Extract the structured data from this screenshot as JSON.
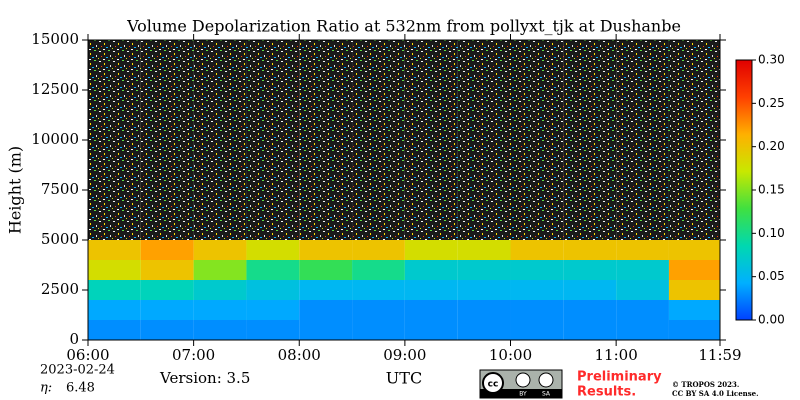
{
  "chart_data": {
    "type": "heatmap",
    "title": "Volume Depolarization Ratio at 532nm from pollyxt_tjk at Dushanbe",
    "ylabel": "Height (m)",
    "xlabel": "UTC",
    "xlim": [
      6,
      11.9833
    ],
    "xticks": [
      {
        "value": 6,
        "label": "06:00"
      },
      {
        "value": 7,
        "label": "07:00"
      },
      {
        "value": 8,
        "label": "08:00"
      },
      {
        "value": 9,
        "label": "09:00"
      },
      {
        "value": 10,
        "label": "10:00"
      },
      {
        "value": 11,
        "label": "11:00"
      },
      {
        "value": 11.9833,
        "label": "11:59"
      }
    ],
    "ylim": [
      0,
      15000
    ],
    "yticks": [
      0,
      2500,
      5000,
      7500,
      10000,
      12500,
      15000
    ],
    "x": [
      6.25,
      6.75,
      7.25,
      7.75,
      8.25,
      8.75,
      9.25,
      9.75,
      10.25,
      10.75,
      11.25,
      11.75
    ],
    "y": [
      500,
      1500,
      2500,
      3500,
      4500,
      5500,
      6500,
      7500,
      8500,
      9500,
      10500,
      11500,
      12500,
      13500,
      14500
    ],
    "z": [
      [
        0.03,
        0.03,
        0.03,
        0.03,
        0.03,
        0.03,
        0.03,
        0.03,
        0.03,
        0.03,
        0.03,
        0.03
      ],
      [
        0.04,
        0.04,
        0.04,
        0.04,
        0.03,
        0.03,
        0.03,
        0.03,
        0.03,
        0.03,
        0.03,
        0.04
      ],
      [
        0.08,
        0.08,
        0.07,
        0.06,
        0.05,
        0.05,
        0.05,
        0.05,
        0.05,
        0.05,
        0.06,
        0.2
      ],
      [
        0.18,
        0.2,
        0.15,
        0.1,
        0.12,
        0.1,
        0.07,
        0.07,
        0.07,
        0.07,
        0.07,
        0.22
      ],
      [
        0.2,
        0.22,
        0.2,
        0.18,
        0.2,
        0.2,
        0.18,
        0.18,
        0.2,
        0.2,
        0.2,
        0.2
      ],
      [
        null,
        null,
        null,
        null,
        null,
        null,
        null,
        null,
        null,
        null,
        null,
        null
      ],
      [
        null,
        null,
        null,
        null,
        null,
        null,
        null,
        null,
        null,
        null,
        null,
        null
      ],
      [
        null,
        null,
        null,
        null,
        null,
        null,
        null,
        null,
        null,
        null,
        null,
        null
      ],
      [
        null,
        null,
        null,
        null,
        null,
        null,
        null,
        null,
        null,
        null,
        null,
        null
      ],
      [
        null,
        null,
        null,
        null,
        null,
        null,
        null,
        null,
        null,
        null,
        null,
        null
      ],
      [
        null,
        null,
        null,
        null,
        null,
        null,
        null,
        null,
        null,
        null,
        null,
        null
      ],
      [
        null,
        null,
        null,
        null,
        null,
        null,
        null,
        null,
        null,
        null,
        null,
        null
      ],
      [
        null,
        null,
        null,
        null,
        null,
        null,
        null,
        null,
        null,
        null,
        null,
        null
      ],
      [
        null,
        null,
        null,
        null,
        null,
        null,
        null,
        null,
        null,
        null,
        null,
        null
      ],
      [
        null,
        null,
        null,
        null,
        null,
        null,
        null,
        null,
        null,
        null,
        null,
        null
      ]
    ],
    "zlim": [
      0,
      0.3
    ],
    "zticks": [
      {
        "value": 0,
        "label": "0.00"
      },
      {
        "value": 0.05,
        "label": "0.05"
      },
      {
        "value": 0.1,
        "label": "0.10"
      },
      {
        "value": 0.15,
        "label": "0.15"
      },
      {
        "value": 0.2,
        "label": "0.20"
      },
      {
        "value": 0.25,
        "label": "0.25"
      },
      {
        "value": 0.3,
        "label": "0.30"
      }
    ],
    "colormap": [
      "#0040ff",
      "#00b0ff",
      "#00d8b0",
      "#40e040",
      "#c8e800",
      "#ffb000",
      "#ff4000",
      "#e00000"
    ],
    "date": "2023-02-24",
    "eta_label": "η:",
    "eta": 6.48,
    "version": "Version: 3.5",
    "watermark": [
      "Preliminary",
      "Results."
    ],
    "license": [
      "© TROPOS 2023.",
      "CC BY SA 4.0 License."
    ],
    "badge": [
      "cc",
      "BY",
      "SA"
    ]
  }
}
